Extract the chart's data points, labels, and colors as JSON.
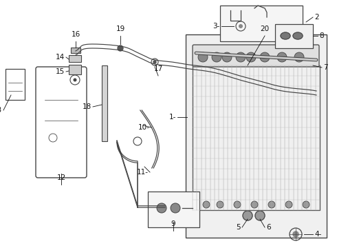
{
  "bg_color": "#ffffff",
  "lc": "#444444",
  "lc2": "#888888",
  "fig_width": 4.9,
  "fig_height": 3.6,
  "dpi": 100,
  "font_size": 7.5,
  "label_color": "#111111"
}
